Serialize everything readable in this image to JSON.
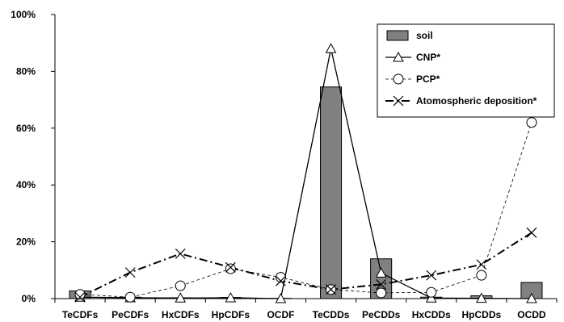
{
  "chart_data": {
    "type": "bar",
    "categories": [
      "TeCDFs",
      "PeCDFs",
      "HxCDFs",
      "HpCDFs",
      "OCDF",
      "TeCDDs",
      "PeCDDs",
      "HxCDDs",
      "HpCDDs",
      "OCDD"
    ],
    "ylim": [
      0,
      100
    ],
    "yticks": [
      "0%",
      "20%",
      "40%",
      "60%",
      "80%",
      "100%"
    ],
    "grid": false,
    "legend_position": "top-right",
    "series": [
      {
        "name": "soil",
        "kind": "bar",
        "color": "#808080",
        "values": [
          2.7,
          0.5,
          0.3,
          0.4,
          0.1,
          74.5,
          14.0,
          0.5,
          1.0,
          5.7
        ]
      },
      {
        "name": "CNP*",
        "kind": "line",
        "style": "solid",
        "marker": "triangle",
        "values": [
          0.5,
          0.3,
          0.2,
          0.3,
          0.0,
          88.0,
          9.0,
          0.2,
          0.1,
          0.0
        ]
      },
      {
        "name": "PCP*",
        "kind": "line",
        "style": "dashed",
        "marker": "circle",
        "values": [
          1.5,
          0.5,
          4.5,
          10.5,
          7.5,
          3.2,
          2.0,
          2.2,
          8.2,
          62.0
        ]
      },
      {
        "name": "Atomospheric deposition*",
        "kind": "line",
        "style": "dashdot",
        "marker": "x",
        "values": [
          0.5,
          9.2,
          15.8,
          11.0,
          6.2,
          3.2,
          5.0,
          8.2,
          12.0,
          23.2
        ]
      }
    ]
  }
}
